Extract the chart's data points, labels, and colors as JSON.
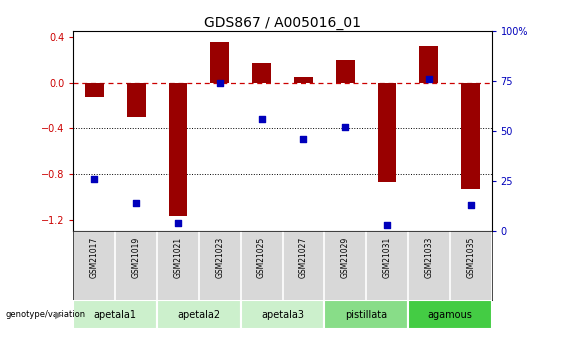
{
  "title": "GDS867 / A005016_01",
  "samples": [
    "GSM21017",
    "GSM21019",
    "GSM21021",
    "GSM21023",
    "GSM21025",
    "GSM21027",
    "GSM21029",
    "GSM21031",
    "GSM21033",
    "GSM21035"
  ],
  "log_ratio": [
    -0.13,
    -0.3,
    -1.17,
    0.35,
    0.17,
    0.05,
    0.2,
    -0.87,
    0.32,
    -0.93
  ],
  "percentile_rank": [
    26,
    14,
    4,
    74,
    56,
    46,
    52,
    3,
    76,
    13
  ],
  "groups": [
    {
      "label": "apetala1",
      "samples": [
        0,
        1
      ],
      "color": "#ccf0cc"
    },
    {
      "label": "apetala2",
      "samples": [
        2,
        3
      ],
      "color": "#ccf0cc"
    },
    {
      "label": "apetala3",
      "samples": [
        4,
        5
      ],
      "color": "#ccf0cc"
    },
    {
      "label": "pistillata",
      "samples": [
        6,
        7
      ],
      "color": "#88dd88"
    },
    {
      "label": "agamous",
      "samples": [
        8,
        9
      ],
      "color": "#44cc44"
    }
  ],
  "ylim_left": [
    -1.3,
    0.45
  ],
  "ylim_right": [
    0,
    100
  ],
  "bar_color": "#990000",
  "dot_color": "#0000bb",
  "hline_color": "#cc0000",
  "dotline_color": "#000000",
  "background_color": "#ffffff",
  "title_fontsize": 10,
  "tick_fontsize": 7,
  "bar_width": 0.45
}
